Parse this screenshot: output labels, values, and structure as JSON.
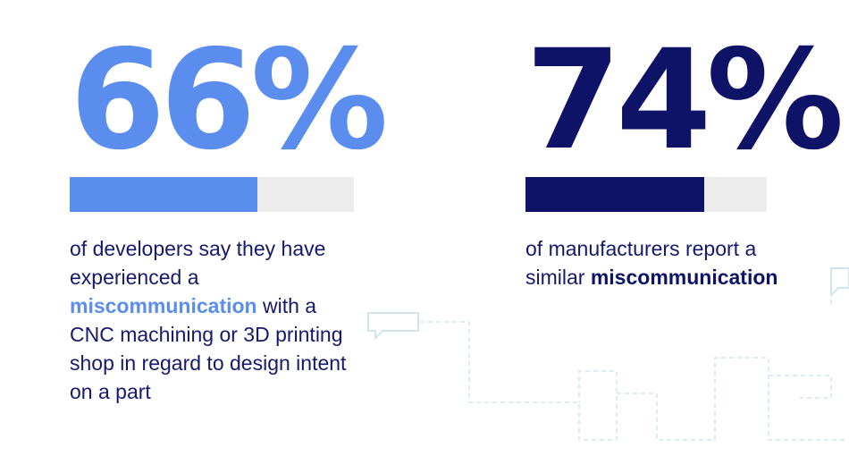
{
  "stats": [
    {
      "value": "66%",
      "bar_fraction": 0.66,
      "text_before": "of developers say they have experienced a ",
      "highlight": "miscommunication",
      "text_after": " with a CNC machining or 3D printing shop in regard to design intent on a part"
    },
    {
      "value": "74%",
      "bar_fraction": 0.74,
      "text_before": "of manufacturers report a similar ",
      "highlight": "miscommunication",
      "text_after": ""
    }
  ],
  "colors": {
    "light_blue": "#5b8def",
    "navy": "#0f1368",
    "track": "#ececec",
    "text": "#16196b",
    "decoration": "#cfe6f0"
  }
}
